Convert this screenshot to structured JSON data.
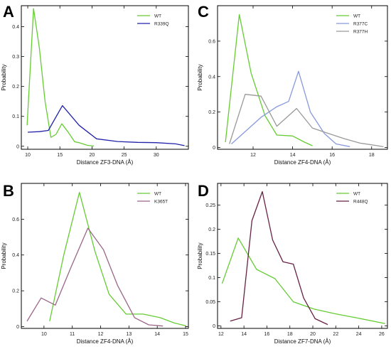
{
  "chart_data": [
    {
      "type": "line",
      "panel": "A",
      "xlabel": "Distance ZF3-DNA (Å)",
      "ylabel": "Probability",
      "xlim": [
        9,
        35
      ],
      "ylim": [
        -0.01,
        0.47
      ],
      "xticks": [
        10,
        15,
        20,
        25,
        30
      ],
      "xtick_labels": [
        "10",
        "15",
        "20",
        "25",
        "30"
      ],
      "yticks": [
        0,
        0.1,
        0.2,
        0.3,
        0.4
      ],
      "ytick_labels": [
        "0",
        "0.1",
        "0.2",
        "0.3",
        "0.4"
      ],
      "legend_position": "top-right",
      "series": [
        {
          "name": "WT",
          "color": "#66cc33",
          "x": [
            9.9,
            10.9,
            11.8,
            12.7,
            13.6,
            14.4,
            15.3,
            16.2,
            17.3,
            18.0,
            19.3,
            20.3
          ],
          "y": [
            0.07,
            0.46,
            0.33,
            0.15,
            0.03,
            0.04,
            0.075,
            0.05,
            0.015,
            0.012,
            0.003,
            0.001
          ]
        },
        {
          "name": "R339Q",
          "color": "#2222aa",
          "x": [
            10.0,
            11.8,
            13.2,
            15.4,
            18.0,
            20.7,
            24.0,
            27.1,
            30.0,
            33.0,
            34.4
          ],
          "y": [
            0.047,
            0.049,
            0.053,
            0.136,
            0.07,
            0.025,
            0.016,
            0.013,
            0.012,
            0.008,
            0.002
          ]
        }
      ]
    },
    {
      "type": "line",
      "panel": "C",
      "xlabel": "Distance ZF4-DNA (Å)",
      "ylabel": "Probability",
      "xlim": [
        10.2,
        18.8
      ],
      "ylim": [
        -0.01,
        0.8
      ],
      "xticks": [
        12,
        14,
        16,
        18
      ],
      "xtick_labels": [
        "12",
        "14",
        "16",
        "18"
      ],
      "yticks": [
        0,
        0.2,
        0.4,
        0.6
      ],
      "ytick_labels": [
        "0",
        "0.2",
        "0.4",
        "0.6"
      ],
      "legend_position": "top-right",
      "series": [
        {
          "name": "WT",
          "color": "#66cc33",
          "x": [
            10.6,
            11.3,
            11.9,
            12.6,
            13.2,
            14.0,
            14.6,
            15.0
          ],
          "y": [
            0.03,
            0.75,
            0.42,
            0.18,
            0.07,
            0.065,
            0.03,
            0.01
          ]
        },
        {
          "name": "R377C",
          "color": "#8899dd",
          "x": [
            10.9,
            11.6,
            12.4,
            13.2,
            13.8,
            14.3,
            14.9,
            15.6,
            16.2,
            16.9
          ],
          "y": [
            0.02,
            0.09,
            0.17,
            0.23,
            0.26,
            0.43,
            0.2,
            0.08,
            0.02,
            0.005
          ]
        },
        {
          "name": "R377H",
          "color": "#999999",
          "x": [
            10.8,
            11.6,
            12.4,
            13.2,
            14.2,
            15.0,
            15.8,
            16.6,
            17.4,
            18.3,
            18.6
          ],
          "y": [
            0.02,
            0.3,
            0.29,
            0.12,
            0.22,
            0.11,
            0.08,
            0.05,
            0.025,
            0.01,
            0.004
          ]
        }
      ]
    },
    {
      "type": "line",
      "panel": "B",
      "xlabel": "Distance ZF4-DNA (Å)",
      "ylabel": "Probability",
      "xlim": [
        9.2,
        15.1
      ],
      "ylim": [
        -0.01,
        0.8
      ],
      "xticks": [
        10,
        11,
        12,
        13,
        14,
        15
      ],
      "xtick_labels": [
        "10",
        "11",
        "12",
        "13",
        "14",
        "15"
      ],
      "yticks": [
        0,
        0.2,
        0.4,
        0.6
      ],
      "ytick_labels": [
        "0",
        "0.2",
        "0.4",
        "0.6"
      ],
      "legend_position": "top-right",
      "series": [
        {
          "name": "WT",
          "color": "#66cc33",
          "x": [
            10.2,
            10.7,
            11.25,
            11.8,
            12.3,
            12.9,
            13.5,
            14.1,
            14.6,
            15.0
          ],
          "y": [
            0.03,
            0.4,
            0.75,
            0.42,
            0.18,
            0.07,
            0.07,
            0.05,
            0.02,
            0.005
          ]
        },
        {
          "name": "K365T",
          "color": "#996688",
          "x": [
            9.4,
            9.9,
            10.4,
            10.95,
            11.55,
            12.1,
            12.6,
            13.2,
            13.7,
            14.2
          ],
          "y": [
            0.03,
            0.16,
            0.12,
            0.33,
            0.55,
            0.43,
            0.23,
            0.05,
            0.01,
            0.003
          ]
        }
      ]
    },
    {
      "type": "line",
      "panel": "D",
      "xlabel": "Distance ZF7-DNA (Å)",
      "ylabel": "Probability",
      "xlim": [
        11.7,
        26.5
      ],
      "ylim": [
        -0.005,
        0.295
      ],
      "xticks": [
        12,
        14,
        16,
        18,
        20,
        22,
        24,
        26
      ],
      "xtick_labels": [
        "12",
        "14",
        "16",
        "18",
        "20",
        "22",
        "24",
        "26"
      ],
      "yticks": [
        0,
        0.05,
        0.1,
        0.15,
        0.2,
        0.25
      ],
      "ytick_labels": [
        "0",
        "0.05",
        "0.1",
        "0.15",
        "0.2",
        "0.25"
      ],
      "legend_position": "top-right",
      "series": [
        {
          "name": "WT",
          "color": "#66cc33",
          "x": [
            12.1,
            13.5,
            15.1,
            16.7,
            18.3,
            20.1,
            22.0,
            24.2,
            26.3
          ],
          "y": [
            0.088,
            0.182,
            0.117,
            0.098,
            0.05,
            0.035,
            0.025,
            0.015,
            0.005
          ]
        },
        {
          "name": "R448Q",
          "color": "#662244",
          "x": [
            12.8,
            13.8,
            14.7,
            15.6,
            16.5,
            17.4,
            18.3,
            19.2,
            20.2,
            21.3
          ],
          "y": [
            0.01,
            0.017,
            0.218,
            0.278,
            0.178,
            0.133,
            0.128,
            0.058,
            0.015,
            0.003
          ]
        }
      ]
    }
  ]
}
